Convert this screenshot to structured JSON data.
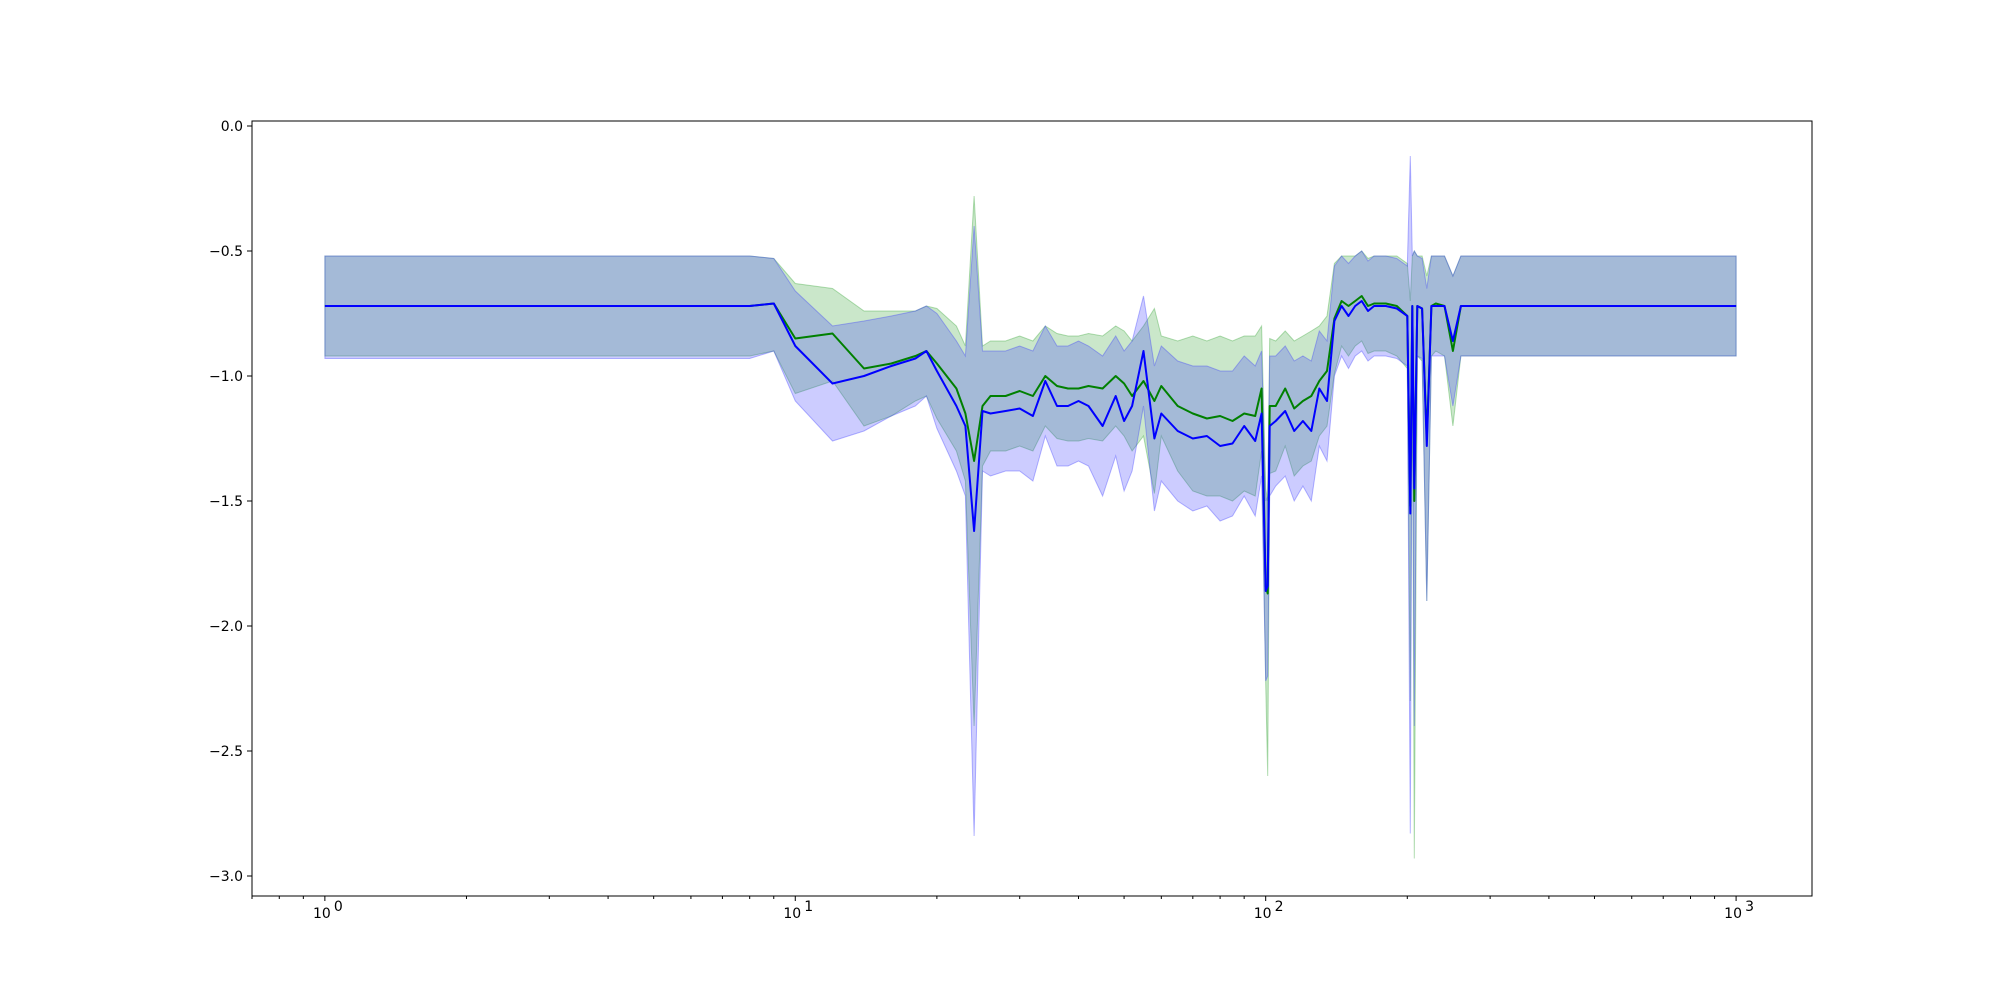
{
  "chart_data": {
    "type": "line",
    "title": "",
    "xlabel": "",
    "ylabel": "",
    "xscale": "log",
    "xlim": [
      0.7,
      1450
    ],
    "ylim": [
      -3.08,
      0.02
    ],
    "grid": false,
    "legend": "none",
    "x_ticks": [
      {
        "base": "10",
        "exp": "0",
        "value": 1
      },
      {
        "base": "10",
        "exp": "1",
        "value": 10
      },
      {
        "base": "10",
        "exp": "2",
        "value": 100
      },
      {
        "base": "10",
        "exp": "3",
        "value": 1000
      }
    ],
    "y_ticks": [
      {
        "label": "0.0",
        "value": 0.0
      },
      {
        "label": "−0.5",
        "value": -0.5
      },
      {
        "label": "−1.0",
        "value": -1.0
      },
      {
        "label": "−1.5",
        "value": -1.5
      },
      {
        "label": "−2.0",
        "value": -2.0
      },
      {
        "label": "−2.5",
        "value": -2.5
      },
      {
        "label": "−3.0",
        "value": -3.0
      }
    ],
    "series": [
      {
        "color": "#008000",
        "band_color": "#2ca02c",
        "x": [
          1,
          3,
          5,
          7,
          8,
          9,
          10,
          12,
          14,
          16,
          18,
          19,
          20,
          22,
          23,
          24,
          25,
          26,
          28,
          30,
          32,
          34,
          36,
          38,
          40,
          42,
          45,
          48,
          50,
          52,
          55,
          58,
          60,
          65,
          70,
          75,
          80,
          85,
          90,
          95,
          98,
          100,
          101,
          102,
          105,
          110,
          115,
          120,
          125,
          130,
          135,
          140,
          145,
          150,
          155,
          160,
          165,
          170,
          180,
          190,
          200,
          203,
          205,
          207,
          210,
          215,
          220,
          225,
          230,
          240,
          250,
          260,
          300,
          400,
          500,
          600,
          800,
          1000
        ],
        "mean": [
          -0.72,
          -0.72,
          -0.72,
          -0.72,
          -0.72,
          -0.71,
          -0.85,
          -0.83,
          -0.97,
          -0.95,
          -0.92,
          -0.9,
          -0.95,
          -1.05,
          -1.15,
          -1.34,
          -1.12,
          -1.08,
          -1.08,
          -1.06,
          -1.08,
          -1.0,
          -1.04,
          -1.05,
          -1.05,
          -1.04,
          -1.05,
          -1.0,
          -1.03,
          -1.08,
          -1.02,
          -1.1,
          -1.04,
          -1.12,
          -1.15,
          -1.17,
          -1.16,
          -1.18,
          -1.15,
          -1.16,
          -1.05,
          -1.84,
          -1.87,
          -1.12,
          -1.12,
          -1.05,
          -1.13,
          -1.1,
          -1.08,
          -1.02,
          -0.98,
          -0.77,
          -0.7,
          -0.72,
          -0.7,
          -0.68,
          -0.72,
          -0.71,
          -0.71,
          -0.72,
          -0.76,
          -1.52,
          -0.72,
          -1.5,
          -0.72,
          -0.73,
          -1.25,
          -0.72,
          -0.71,
          -0.72,
          -0.9,
          -0.72,
          -0.72,
          -0.72,
          -0.72,
          -0.72,
          -0.72,
          -0.72
        ],
        "upper": [
          -0.52,
          -0.52,
          -0.52,
          -0.52,
          -0.52,
          -0.53,
          -0.63,
          -0.65,
          -0.74,
          -0.74,
          -0.74,
          -0.72,
          -0.73,
          -0.8,
          -0.88,
          -0.28,
          -0.88,
          -0.86,
          -0.86,
          -0.84,
          -0.86,
          -0.8,
          -0.83,
          -0.84,
          -0.84,
          -0.83,
          -0.84,
          -0.8,
          -0.82,
          -0.86,
          -0.8,
          -0.73,
          -0.84,
          -0.86,
          -0.84,
          -0.86,
          -0.84,
          -0.86,
          -0.84,
          -0.84,
          -0.8,
          -1.45,
          -1.5,
          -0.85,
          -0.86,
          -0.82,
          -0.86,
          -0.84,
          -0.82,
          -0.8,
          -0.76,
          -0.55,
          -0.52,
          -0.52,
          -0.52,
          -0.5,
          -0.53,
          -0.52,
          -0.52,
          -0.52,
          -0.55,
          -0.7,
          -0.52,
          -0.5,
          -0.52,
          -0.52,
          -0.6,
          -0.52,
          -0.52,
          -0.52,
          -0.6,
          -0.52,
          -0.52,
          -0.52,
          -0.52,
          -0.52,
          -0.52,
          -0.52
        ],
        "lower": [
          -0.92,
          -0.92,
          -0.92,
          -0.92,
          -0.92,
          -0.9,
          -1.07,
          -1.02,
          -1.2,
          -1.16,
          -1.1,
          -1.08,
          -1.17,
          -1.3,
          -1.42,
          -2.4,
          -1.36,
          -1.3,
          -1.3,
          -1.28,
          -1.3,
          -1.2,
          -1.25,
          -1.26,
          -1.26,
          -1.25,
          -1.26,
          -1.2,
          -1.24,
          -1.3,
          -1.24,
          -1.47,
          -1.24,
          -1.38,
          -1.46,
          -1.48,
          -1.48,
          -1.5,
          -1.46,
          -1.48,
          -1.3,
          -2.23,
          -2.6,
          -1.39,
          -1.38,
          -1.28,
          -1.4,
          -1.36,
          -1.34,
          -1.24,
          -1.2,
          -0.99,
          -0.88,
          -0.92,
          -0.88,
          -0.86,
          -0.91,
          -0.9,
          -0.9,
          -0.92,
          -0.97,
          -2.3,
          -0.92,
          -2.93,
          -0.92,
          -0.94,
          -1.9,
          -0.92,
          -0.9,
          -0.92,
          -1.2,
          -0.92,
          -0.92,
          -0.92,
          -0.92,
          -0.92,
          -0.92,
          -0.92
        ]
      },
      {
        "color": "#0000ff",
        "band_color": "#3333ff",
        "x": [
          1,
          3,
          5,
          7,
          8,
          9,
          10,
          12,
          14,
          16,
          18,
          19,
          20,
          22,
          23,
          24,
          25,
          26,
          28,
          30,
          32,
          34,
          36,
          38,
          40,
          42,
          45,
          48,
          50,
          52,
          55,
          58,
          60,
          65,
          70,
          75,
          80,
          85,
          90,
          95,
          98,
          100,
          101,
          102,
          105,
          110,
          115,
          120,
          125,
          130,
          135,
          140,
          145,
          150,
          155,
          160,
          165,
          170,
          180,
          190,
          200,
          203,
          205,
          207,
          210,
          215,
          220,
          225,
          230,
          240,
          250,
          260,
          300,
          400,
          500,
          600,
          800,
          1000
        ],
        "mean": [
          -0.72,
          -0.72,
          -0.72,
          -0.72,
          -0.72,
          -0.71,
          -0.88,
          -1.03,
          -1.0,
          -0.96,
          -0.93,
          -0.9,
          -0.98,
          -1.12,
          -1.2,
          -1.62,
          -1.14,
          -1.15,
          -1.14,
          -1.13,
          -1.16,
          -1.02,
          -1.12,
          -1.12,
          -1.1,
          -1.12,
          -1.2,
          -1.08,
          -1.18,
          -1.12,
          -0.9,
          -1.25,
          -1.15,
          -1.22,
          -1.25,
          -1.24,
          -1.28,
          -1.27,
          -1.2,
          -1.26,
          -1.15,
          -1.86,
          -1.84,
          -1.2,
          -1.18,
          -1.14,
          -1.22,
          -1.18,
          -1.22,
          -1.05,
          -1.1,
          -0.78,
          -0.72,
          -0.76,
          -0.72,
          -0.7,
          -0.74,
          -0.72,
          -0.72,
          -0.73,
          -0.76,
          -1.55,
          -0.72,
          -1.45,
          -0.72,
          -0.73,
          -1.28,
          -0.72,
          -0.72,
          -0.72,
          -0.86,
          -0.72,
          -0.72,
          -0.72,
          -0.72,
          -0.72,
          -0.72,
          -0.72
        ],
        "upper": [
          -0.52,
          -0.52,
          -0.52,
          -0.52,
          -0.52,
          -0.53,
          -0.66,
          -0.8,
          -0.78,
          -0.76,
          -0.74,
          -0.72,
          -0.75,
          -0.86,
          -0.92,
          -0.4,
          -0.9,
          -0.9,
          -0.9,
          -0.88,
          -0.9,
          -0.8,
          -0.88,
          -0.88,
          -0.86,
          -0.88,
          -0.92,
          -0.84,
          -0.9,
          -0.86,
          -0.68,
          -0.96,
          -0.88,
          -0.94,
          -0.96,
          -0.96,
          -0.98,
          -0.98,
          -0.92,
          -0.96,
          -0.9,
          -1.5,
          -1.48,
          -0.92,
          -0.92,
          -0.88,
          -0.94,
          -0.92,
          -0.94,
          -0.82,
          -0.86,
          -0.56,
          -0.52,
          -0.55,
          -0.52,
          -0.5,
          -0.54,
          -0.52,
          -0.52,
          -0.53,
          -0.56,
          -0.12,
          -0.52,
          -0.5,
          -0.52,
          -0.53,
          -0.65,
          -0.52,
          -0.52,
          -0.52,
          -0.6,
          -0.52,
          -0.52,
          -0.52,
          -0.52,
          -0.52,
          -0.52,
          -0.52
        ],
        "lower": [
          -0.93,
          -0.93,
          -0.93,
          -0.93,
          -0.93,
          -0.9,
          -1.1,
          -1.26,
          -1.22,
          -1.16,
          -1.12,
          -1.08,
          -1.21,
          -1.38,
          -1.48,
          -2.84,
          -1.38,
          -1.4,
          -1.38,
          -1.38,
          -1.42,
          -1.24,
          -1.36,
          -1.36,
          -1.34,
          -1.36,
          -1.48,
          -1.32,
          -1.46,
          -1.38,
          -1.12,
          -1.54,
          -1.42,
          -1.5,
          -1.54,
          -1.52,
          -1.58,
          -1.56,
          -1.48,
          -1.56,
          -1.4,
          -2.22,
          -2.2,
          -1.48,
          -1.44,
          -1.4,
          -1.5,
          -1.44,
          -1.5,
          -1.28,
          -1.34,
          -1.0,
          -0.92,
          -0.97,
          -0.92,
          -0.9,
          -0.94,
          -0.92,
          -0.92,
          -0.93,
          -0.96,
          -2.83,
          -0.92,
          -2.4,
          -0.92,
          -0.93,
          -1.9,
          -0.92,
          -0.92,
          -0.92,
          -1.12,
          -0.92,
          -0.92,
          -0.92,
          -0.92,
          -0.92,
          -0.92,
          -0.92
        ]
      }
    ]
  }
}
